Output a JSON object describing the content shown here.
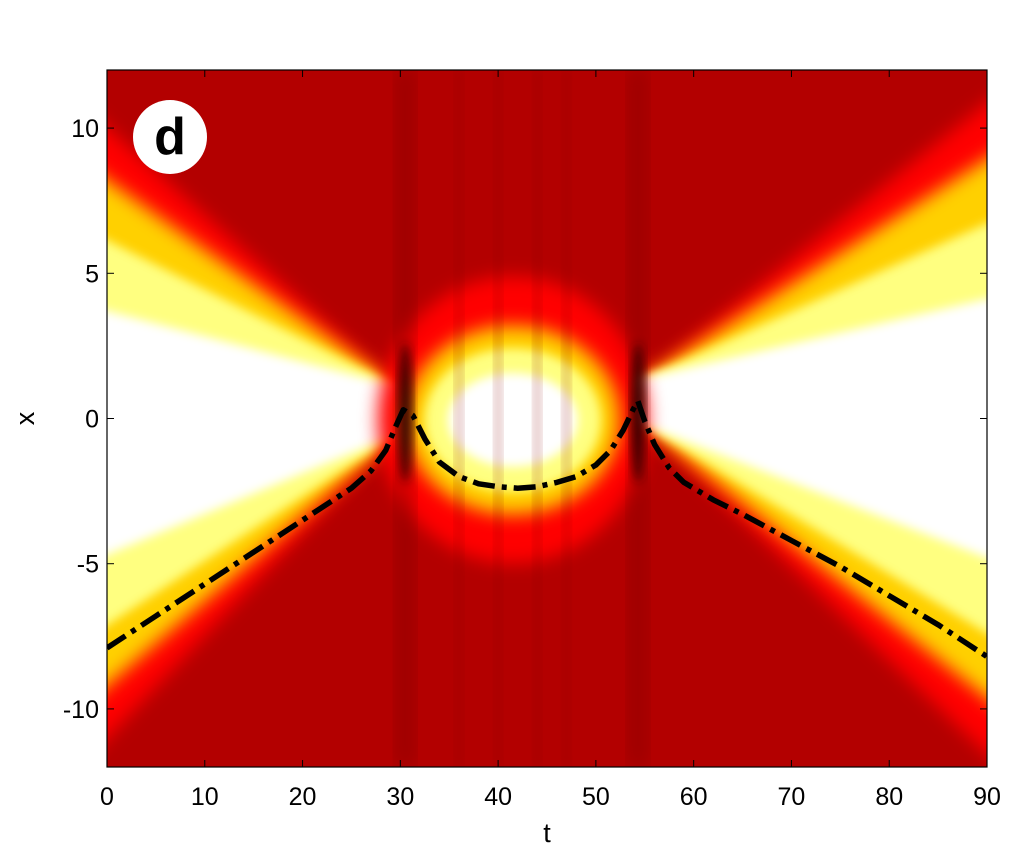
{
  "chart_data": {
    "type": "heatmap",
    "title": "",
    "panel_label": "d",
    "xlabel": "t",
    "ylabel": "x",
    "xlim": [
      0,
      90
    ],
    "ylim": [
      -12,
      12
    ],
    "xticks": [
      0,
      10,
      20,
      30,
      40,
      50,
      60,
      70,
      80,
      90
    ],
    "yticks": [
      -10,
      -5,
      0,
      5,
      10
    ],
    "colormap": [
      "#b00000",
      "#ff0000",
      "#ffd000",
      "#ffff80",
      "#ffffff"
    ],
    "background_color": "#b30000",
    "legend": "none",
    "grid": false,
    "features": {
      "dark_seams_at_t": [
        30.5,
        54.3
      ],
      "central_blob": {
        "t_range": [
          32,
          51
        ],
        "x_center": 0,
        "half_width": 2.6
      }
    },
    "series": [
      {
        "style": "dash-dot",
        "color": "#000000",
        "points": [
          [
            0,
            -7.9
          ],
          [
            5,
            -6.8
          ],
          [
            10,
            -5.7
          ],
          [
            15,
            -4.6
          ],
          [
            20,
            -3.5
          ],
          [
            25,
            -2.4
          ],
          [
            27,
            -1.8
          ],
          [
            28.5,
            -1.1
          ],
          [
            29.5,
            -0.3
          ],
          [
            30.3,
            0.3
          ],
          [
            31.3,
            0.1
          ],
          [
            32.5,
            -0.7
          ],
          [
            34,
            -1.5
          ],
          [
            36,
            -2.0
          ],
          [
            38,
            -2.25
          ],
          [
            40,
            -2.35
          ],
          [
            42,
            -2.4
          ],
          [
            44,
            -2.35
          ],
          [
            46,
            -2.2
          ],
          [
            48,
            -2.0
          ],
          [
            50,
            -1.6
          ],
          [
            51.5,
            -1.1
          ],
          [
            52.8,
            -0.4
          ],
          [
            53.8,
            0.3
          ],
          [
            54.3,
            0.6
          ],
          [
            55,
            -0.1
          ],
          [
            56,
            -0.9
          ],
          [
            57.5,
            -1.7
          ],
          [
            59,
            -2.2
          ],
          [
            62,
            -2.8
          ],
          [
            65,
            -3.3
          ],
          [
            70,
            -4.2
          ],
          [
            75,
            -5.1
          ],
          [
            80,
            -6.1
          ],
          [
            85,
            -7.1
          ],
          [
            90,
            -8.2
          ]
        ]
      }
    ]
  }
}
